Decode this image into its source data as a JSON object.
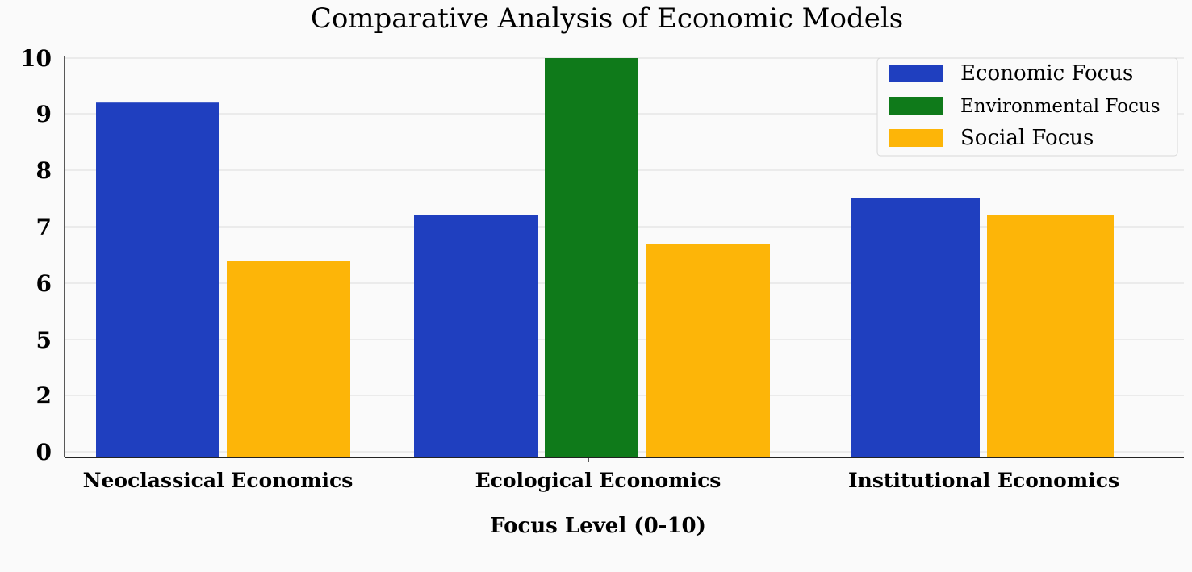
{
  "chart_data": {
    "type": "bar",
    "title": "Comparative Analysis of Economic Models",
    "xlabel": "Focus Level (0-10)",
    "ylabel": "",
    "categories": [
      "Neoclassical Economics",
      "Ecological Economics",
      "Institutional Economics"
    ],
    "yticks": [
      {
        "label": "0",
        "value": 0
      },
      {
        "label": "2",
        "value": 2
      },
      {
        "label": "5",
        "value": 5
      },
      {
        "label": "6",
        "value": 6
      },
      {
        "label": "7",
        "value": 7
      },
      {
        "label": "8",
        "value": 8
      },
      {
        "label": "9",
        "value": 9
      },
      {
        "label": "10",
        "value": 10
      }
    ],
    "series": [
      {
        "name": "Economic Focus",
        "color": "#1f3fbf",
        "values": [
          9.2,
          7.2,
          7.5
        ]
      },
      {
        "name": "Environmental Focus",
        "color": "#0f7a1a",
        "values": [
          null,
          10,
          null
        ]
      },
      {
        "name": "Social Focus",
        "color": "#fdb508",
        "values": [
          6.4,
          6.7,
          7.2
        ]
      }
    ],
    "legend_position": "top-right",
    "grid": true
  }
}
